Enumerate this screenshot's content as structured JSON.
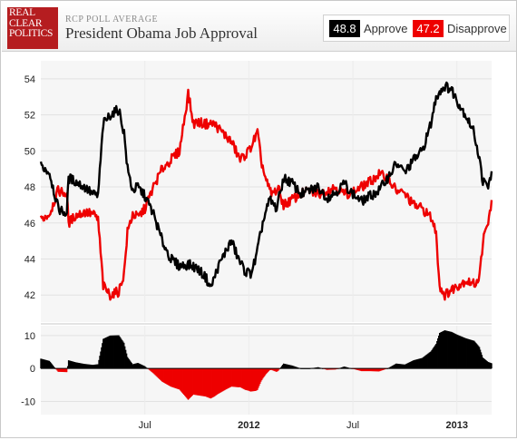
{
  "header": {
    "logo_lines": [
      "REAL",
      "CLEAR",
      "POLITICS"
    ],
    "kicker": "RCP POLL AVERAGE",
    "title": "President Obama Job Approval"
  },
  "legend": {
    "approve_value": "48.8",
    "approve_label": "Approve",
    "disapprove_value": "47.2",
    "disapprove_label": "Disapprove"
  },
  "colors": {
    "approve": "#000000",
    "disapprove": "#ee0000"
  },
  "chart_data": {
    "type": "line",
    "x_unit": "months since Jan 2011 (x tick labels: Jul, 2012, Jul, 2013)",
    "x_range": [
      0,
      25.5
    ],
    "x_ticks": [
      {
        "x": 6,
        "label": "Jul",
        "bold": false
      },
      {
        "x": 12,
        "label": "2012",
        "bold": true
      },
      {
        "x": 18,
        "label": "Jul",
        "bold": false
      },
      {
        "x": 24,
        "label": "2013",
        "bold": true
      }
    ],
    "ylim": [
      40.5,
      55
    ],
    "y_ticks": [
      42,
      44,
      46,
      48,
      50,
      52,
      54
    ],
    "grid": true,
    "series": [
      {
        "name": "Approve",
        "color": "#000000",
        "points": [
          [
            0,
            49.2
          ],
          [
            0.5,
            48.8
          ],
          [
            1,
            46.8
          ],
          [
            1.5,
            46.5
          ],
          [
            1.6,
            48.5
          ],
          [
            2,
            48.3
          ],
          [
            2.5,
            48
          ],
          [
            3,
            47.6
          ],
          [
            3.3,
            47.5
          ],
          [
            3.6,
            51.5
          ],
          [
            4,
            52
          ],
          [
            4.5,
            52.3
          ],
          [
            4.8,
            51
          ],
          [
            5,
            49
          ],
          [
            5.3,
            47.8
          ],
          [
            5.6,
            48
          ],
          [
            6,
            47.5
          ],
          [
            6.5,
            46.5
          ],
          [
            7,
            45
          ],
          [
            7.5,
            44
          ],
          [
            8,
            43.6
          ],
          [
            8.5,
            43.7
          ],
          [
            9,
            43.5
          ],
          [
            9.5,
            43
          ],
          [
            9.8,
            42.4
          ],
          [
            10.2,
            43.5
          ],
          [
            10.7,
            44.5
          ],
          [
            11,
            45
          ],
          [
            11.4,
            44
          ],
          [
            11.8,
            43.3
          ],
          [
            12.1,
            43.2
          ],
          [
            12.4,
            44
          ],
          [
            12.8,
            46
          ],
          [
            13.2,
            47.3
          ],
          [
            13.6,
            46.8
          ],
          [
            14,
            48.5
          ],
          [
            14.5,
            48.2
          ],
          [
            15,
            47.6
          ],
          [
            15.5,
            47.8
          ],
          [
            16,
            48
          ],
          [
            16.5,
            47.4
          ],
          [
            17,
            47.7
          ],
          [
            17.5,
            48.2
          ],
          [
            18,
            47.6
          ],
          [
            18.5,
            47.2
          ],
          [
            19,
            47.5
          ],
          [
            19.5,
            47.8
          ],
          [
            20,
            48.5
          ],
          [
            20.5,
            49.3
          ],
          [
            21,
            48.8
          ],
          [
            21.5,
            49.5
          ],
          [
            22,
            50
          ],
          [
            22.5,
            51.5
          ],
          [
            22.8,
            53
          ],
          [
            23,
            53.3
          ],
          [
            23.3,
            53.6
          ],
          [
            23.7,
            53.4
          ],
          [
            24,
            52.8
          ],
          [
            24.5,
            52
          ],
          [
            25,
            51
          ],
          [
            25.3,
            49.5
          ],
          [
            25.5,
            48.3
          ],
          [
            25.8,
            48
          ],
          [
            26,
            48.8
          ]
        ]
      },
      {
        "name": "Disapprove",
        "color": "#ee0000",
        "points": [
          [
            0,
            46.2
          ],
          [
            0.5,
            46.5
          ],
          [
            1,
            47.8
          ],
          [
            1.5,
            47.6
          ],
          [
            1.6,
            46
          ],
          [
            2,
            46.4
          ],
          [
            2.5,
            46.6
          ],
          [
            3,
            46.5
          ],
          [
            3.3,
            46.2
          ],
          [
            3.6,
            42.5
          ],
          [
            4,
            42
          ],
          [
            4.5,
            42.2
          ],
          [
            4.8,
            43.2
          ],
          [
            5,
            45.5
          ],
          [
            5.3,
            46.5
          ],
          [
            5.6,
            46.3
          ],
          [
            6,
            46.8
          ],
          [
            6.5,
            48
          ],
          [
            7,
            49
          ],
          [
            7.5,
            49.5
          ],
          [
            8,
            50
          ],
          [
            8.5,
            53.2
          ],
          [
            8.8,
            51.5
          ],
          [
            9,
            51.6
          ],
          [
            9.5,
            51.5
          ],
          [
            10,
            51.5
          ],
          [
            10.5,
            51
          ],
          [
            11,
            50.5
          ],
          [
            11.5,
            49.5
          ],
          [
            12,
            50
          ],
          [
            12.5,
            51
          ],
          [
            12.7,
            49.5
          ],
          [
            13,
            48.3
          ],
          [
            13.3,
            47.6
          ],
          [
            13.7,
            47.9
          ],
          [
            14,
            47
          ],
          [
            14.5,
            47.3
          ],
          [
            15,
            47.6
          ],
          [
            15.5,
            47.8
          ],
          [
            16,
            47.6
          ],
          [
            16.5,
            47.8
          ],
          [
            17,
            48
          ],
          [
            17.5,
            47.6
          ],
          [
            18,
            47.7
          ],
          [
            18.5,
            48
          ],
          [
            19,
            48.3
          ],
          [
            19.5,
            48.7
          ],
          [
            20,
            48.5
          ],
          [
            20.5,
            47.8
          ],
          [
            21,
            47.6
          ],
          [
            21.5,
            47
          ],
          [
            22,
            46.8
          ],
          [
            22.5,
            46.3
          ],
          [
            22.8,
            45.5
          ],
          [
            23,
            42.5
          ],
          [
            23.3,
            42
          ],
          [
            23.7,
            42.3
          ],
          [
            24,
            42.5
          ],
          [
            24.5,
            42.8
          ],
          [
            25,
            42.6
          ],
          [
            25.3,
            43
          ],
          [
            25.5,
            45
          ],
          [
            25.8,
            46
          ],
          [
            26,
            47.2
          ]
        ]
      }
    ],
    "spread": {
      "ylim": [
        -14,
        13
      ],
      "y_ticks": [
        10,
        0,
        -10
      ],
      "positive_color": "#000000",
      "negative_color": "#ee0000"
    }
  }
}
